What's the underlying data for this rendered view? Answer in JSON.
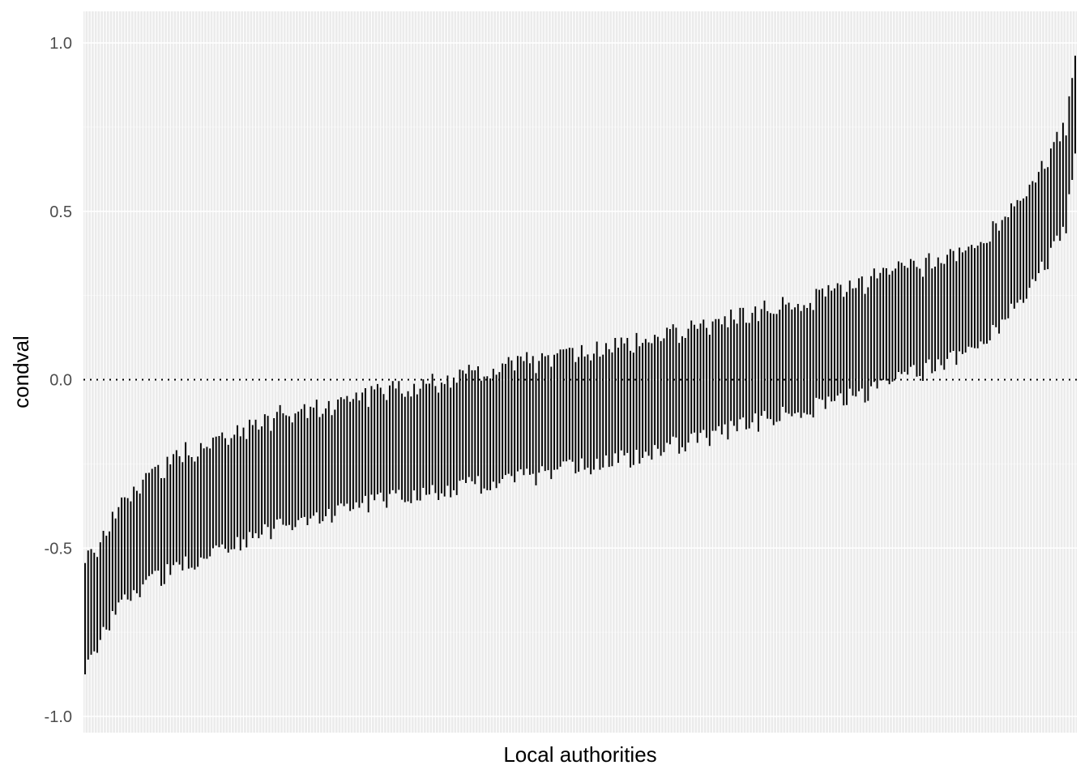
{
  "chart_data": {
    "type": "errorbar",
    "title": "",
    "xlabel": "Local authorities",
    "ylabel": "condval",
    "ylim": [
      -1.0,
      1.0
    ],
    "yticks": [
      -1.0,
      -0.5,
      0.0,
      0.5,
      1.0
    ],
    "ytick_labels": [
      "-1.0",
      "-0.5",
      "0.0",
      "0.5",
      "1.0"
    ],
    "reference_line": {
      "y": 0.0,
      "style": "dotted"
    },
    "grid": true,
    "legend": "none",
    "n_points": 326,
    "series": [
      {
        "description": "Conditional intervals per local authority, sorted by centre value",
        "anchors": [
          {
            "rank": 0,
            "lower": -0.88,
            "upper": -0.55
          },
          {
            "rank": 5,
            "lower": -0.76,
            "upper": -0.48
          },
          {
            "rank": 15,
            "lower": -0.63,
            "upper": -0.33
          },
          {
            "rank": 30,
            "lower": -0.56,
            "upper": -0.23
          },
          {
            "rank": 60,
            "lower": -0.45,
            "upper": -0.12
          },
          {
            "rank": 100,
            "lower": -0.35,
            "upper": -0.03
          },
          {
            "rank": 140,
            "lower": -0.3,
            "upper": 0.04
          },
          {
            "rank": 180,
            "lower": -0.23,
            "upper": 0.11
          },
          {
            "rank": 220,
            "lower": -0.13,
            "upper": 0.19
          },
          {
            "rank": 260,
            "lower": -0.03,
            "upper": 0.3
          },
          {
            "rank": 290,
            "lower": 0.08,
            "upper": 0.38
          },
          {
            "rank": 305,
            "lower": 0.21,
            "upper": 0.51
          },
          {
            "rank": 315,
            "lower": 0.34,
            "upper": 0.64
          },
          {
            "rank": 322,
            "lower": 0.46,
            "upper": 0.76
          },
          {
            "rank": 325,
            "lower": 0.7,
            "upper": 1.0
          }
        ]
      }
    ],
    "colors": {
      "panel_background": "#ebebeb",
      "grid_major": "#ffffff",
      "bar": "#000000",
      "reference_line": "#000000",
      "tick_label": "#4d4d4d"
    }
  }
}
